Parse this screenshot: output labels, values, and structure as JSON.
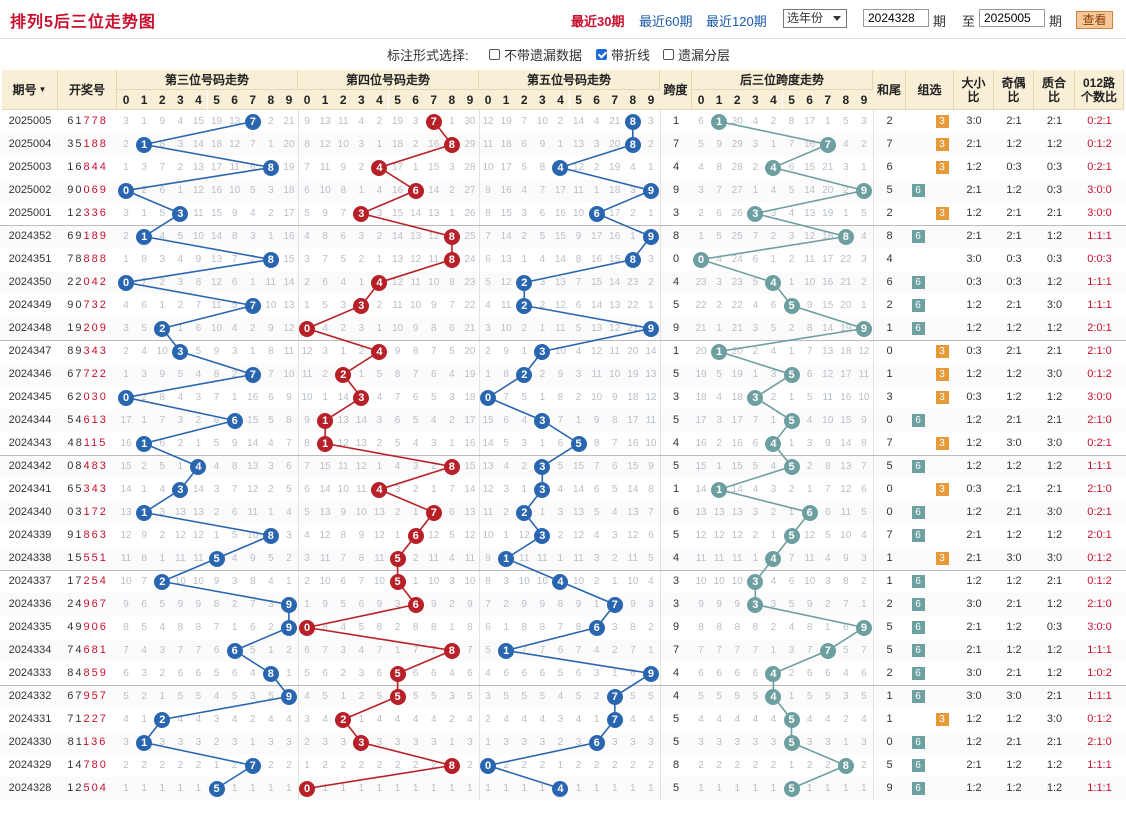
{
  "title": "排列5后三位走势图",
  "periods": [
    {
      "label": "最近30期",
      "active": true
    },
    {
      "label": "最近60期",
      "active": false
    },
    {
      "label": "最近120期",
      "active": false
    }
  ],
  "year_select": "选年份",
  "range": {
    "from": "2024328",
    "from_suffix": "期",
    "to_label": "至",
    "to": "2025005",
    "to_suffix": "期"
  },
  "view_button": "查看",
  "options": {
    "label": "标注形式选择:",
    "items": [
      {
        "label": "不带遗漏数据",
        "checked": false
      },
      {
        "label": "带折线",
        "checked": true
      },
      {
        "label": "遗漏分层",
        "checked": false
      }
    ]
  },
  "headers": {
    "issue": "期号",
    "draw": "开奖号",
    "pos3": "第三位号码走势",
    "pos4": "第四位号码走势",
    "pos5": "第五位号码走势",
    "span": "跨度",
    "spantrend": "后三位跨度走势",
    "sumtail": "和尾",
    "group": "组选",
    "bigsmall": "大小比",
    "oddeven": "奇偶比",
    "primecomp": "质合比",
    "mod012": "012路个数比",
    "digits": [
      "0",
      "1",
      "2",
      "3",
      "4",
      "5",
      "6",
      "7",
      "8",
      "9"
    ]
  },
  "rows": [
    {
      "issue": "2025005",
      "draw": "61778",
      "d": [
        7,
        7,
        8
      ],
      "span": "1",
      "sumtail": "2",
      "g3": "3",
      "g6": "",
      "bs": "3:0",
      "oe": "2:1",
      "pc": "2:1",
      "m": "0:2:1"
    },
    {
      "issue": "2025004",
      "draw": "35188",
      "d": [
        1,
        8,
        8
      ],
      "span": "7",
      "sumtail": "7",
      "g3": "3",
      "g6": "",
      "bs": "2:1",
      "oe": "1:2",
      "pc": "1:2",
      "m": "0:1:2"
    },
    {
      "issue": "2025003",
      "draw": "16844",
      "d": [
        8,
        4,
        4
      ],
      "span": "4",
      "sumtail": "6",
      "g3": "3",
      "g6": "",
      "bs": "1:2",
      "oe": "0:3",
      "pc": "0:3",
      "m": "0:2:1"
    },
    {
      "issue": "2025002",
      "draw": "90069",
      "d": [
        0,
        6,
        9
      ],
      "span": "9",
      "sumtail": "5",
      "g3": "",
      "g6": "6",
      "bs": "2:1",
      "oe": "1:2",
      "pc": "0:3",
      "m": "3:0:0"
    },
    {
      "issue": "2025001",
      "draw": "12336",
      "d": [
        3,
        3,
        6
      ],
      "span": "3",
      "sumtail": "2",
      "g3": "3",
      "g6": "",
      "bs": "1:2",
      "oe": "2:1",
      "pc": "2:1",
      "m": "3:0:0"
    },
    {
      "issue": "2024352",
      "draw": "69189",
      "d": [
        1,
        8,
        9
      ],
      "span": "8",
      "sumtail": "8",
      "g3": "",
      "g6": "6",
      "bs": "2:1",
      "oe": "2:1",
      "pc": "1:2",
      "m": "1:1:1"
    },
    {
      "issue": "2024351",
      "draw": "78888",
      "d": [
        8,
        8,
        8
      ],
      "span": "0",
      "sumtail": "4",
      "g3": "",
      "g6": "",
      "bs": "3:0",
      "oe": "0:3",
      "pc": "0:3",
      "m": "0:0:3"
    },
    {
      "issue": "2024350",
      "draw": "22042",
      "d": [
        0,
        4,
        2
      ],
      "span": "4",
      "sumtail": "6",
      "g3": "",
      "g6": "6",
      "bs": "0:3",
      "oe": "0:3",
      "pc": "1:2",
      "m": "1:1:1"
    },
    {
      "issue": "2024349",
      "draw": "90732",
      "d": [
        7,
        3,
        2
      ],
      "span": "5",
      "sumtail": "2",
      "g3": "",
      "g6": "6",
      "bs": "1:2",
      "oe": "2:1",
      "pc": "3:0",
      "m": "1:1:1"
    },
    {
      "issue": "2024348",
      "draw": "19209",
      "d": [
        2,
        0,
        9
      ],
      "span": "9",
      "sumtail": "1",
      "g3": "",
      "g6": "6",
      "bs": "1:2",
      "oe": "1:2",
      "pc": "1:2",
      "m": "2:0:1"
    },
    {
      "issue": "2024347",
      "draw": "89343",
      "d": [
        3,
        4,
        3
      ],
      "span": "1",
      "sumtail": "0",
      "g3": "3",
      "g6": "",
      "bs": "0:3",
      "oe": "2:1",
      "pc": "2:1",
      "m": "2:1:0"
    },
    {
      "issue": "2024346",
      "draw": "67722",
      "d": [
        7,
        2,
        2
      ],
      "span": "5",
      "sumtail": "1",
      "g3": "3",
      "g6": "",
      "bs": "1:2",
      "oe": "1:2",
      "pc": "3:0",
      "m": "0:1:2"
    },
    {
      "issue": "2024345",
      "draw": "62030",
      "d": [
        0,
        3,
        0
      ],
      "span": "3",
      "sumtail": "3",
      "g3": "3",
      "g6": "",
      "bs": "0:3",
      "oe": "1:2",
      "pc": "1:2",
      "m": "3:0:0"
    },
    {
      "issue": "2024344",
      "draw": "54613",
      "d": [
        6,
        1,
        3
      ],
      "span": "5",
      "sumtail": "0",
      "g3": "",
      "g6": "6",
      "bs": "1:2",
      "oe": "2:1",
      "pc": "2:1",
      "m": "2:1:0"
    },
    {
      "issue": "2024343",
      "draw": "48115",
      "d": [
        1,
        1,
        5
      ],
      "span": "4",
      "sumtail": "7",
      "g3": "3",
      "g6": "",
      "bs": "1:2",
      "oe": "3:0",
      "pc": "3:0",
      "m": "0:2:1"
    },
    {
      "issue": "2024342",
      "draw": "08483",
      "d": [
        4,
        8,
        3
      ],
      "span": "5",
      "sumtail": "5",
      "g3": "",
      "g6": "6",
      "bs": "1:2",
      "oe": "1:2",
      "pc": "1:2",
      "m": "1:1:1"
    },
    {
      "issue": "2024341",
      "draw": "65343",
      "d": [
        3,
        4,
        3
      ],
      "span": "1",
      "sumtail": "0",
      "g3": "3",
      "g6": "",
      "bs": "0:3",
      "oe": "2:1",
      "pc": "2:1",
      "m": "2:1:0"
    },
    {
      "issue": "2024340",
      "draw": "03172",
      "d": [
        1,
        7,
        2
      ],
      "span": "6",
      "sumtail": "0",
      "g3": "",
      "g6": "6",
      "bs": "1:2",
      "oe": "2:1",
      "pc": "3:0",
      "m": "0:2:1"
    },
    {
      "issue": "2024339",
      "draw": "91863",
      "d": [
        8,
        6,
        3
      ],
      "span": "5",
      "sumtail": "7",
      "g3": "",
      "g6": "6",
      "bs": "2:1",
      "oe": "1:2",
      "pc": "1:2",
      "m": "2:0:1"
    },
    {
      "issue": "2024338",
      "draw": "15551",
      "d": [
        5,
        5,
        1
      ],
      "span": "4",
      "sumtail": "1",
      "g3": "3",
      "g6": "",
      "bs": "2:1",
      "oe": "3:0",
      "pc": "3:0",
      "m": "0:1:2"
    },
    {
      "issue": "2024337",
      "draw": "17254",
      "d": [
        2,
        5,
        4
      ],
      "span": "3",
      "sumtail": "1",
      "g3": "",
      "g6": "6",
      "bs": "1:2",
      "oe": "1:2",
      "pc": "2:1",
      "m": "0:1:2"
    },
    {
      "issue": "2024336",
      "draw": "24967",
      "d": [
        9,
        6,
        7
      ],
      "span": "3",
      "sumtail": "2",
      "g3": "",
      "g6": "6",
      "bs": "3:0",
      "oe": "2:1",
      "pc": "1:2",
      "m": "2:1:0"
    },
    {
      "issue": "2024335",
      "draw": "49906",
      "d": [
        9,
        0,
        6
      ],
      "span": "9",
      "sumtail": "5",
      "g3": "",
      "g6": "6",
      "bs": "2:1",
      "oe": "1:2",
      "pc": "0:3",
      "m": "3:0:0"
    },
    {
      "issue": "2024334",
      "draw": "74681",
      "d": [
        6,
        8,
        1
      ],
      "span": "7",
      "sumtail": "5",
      "g3": "",
      "g6": "6",
      "bs": "2:1",
      "oe": "1:2",
      "pc": "1:2",
      "m": "1:1:1"
    },
    {
      "issue": "2024333",
      "draw": "84859",
      "d": [
        8,
        5,
        9
      ],
      "span": "4",
      "sumtail": "2",
      "g3": "",
      "g6": "6",
      "bs": "3:0",
      "oe": "2:1",
      "pc": "1:2",
      "m": "1:0:2"
    },
    {
      "issue": "2024332",
      "draw": "67957",
      "d": [
        9,
        5,
        7
      ],
      "span": "4",
      "sumtail": "1",
      "g3": "",
      "g6": "6",
      "bs": "3:0",
      "oe": "3:0",
      "pc": "2:1",
      "m": "1:1:1"
    },
    {
      "issue": "2024331",
      "draw": "71227",
      "d": [
        2,
        2,
        7
      ],
      "span": "5",
      "sumtail": "1",
      "g3": "3",
      "g6": "",
      "bs": "1:2",
      "oe": "1:2",
      "pc": "3:0",
      "m": "0:1:2"
    },
    {
      "issue": "2024330",
      "draw": "81136",
      "d": [
        1,
        3,
        6
      ],
      "span": "5",
      "sumtail": "0",
      "g3": "",
      "g6": "6",
      "bs": "1:2",
      "oe": "2:1",
      "pc": "2:1",
      "m": "2:1:0"
    },
    {
      "issue": "2024329",
      "draw": "14780",
      "d": [
        7,
        8,
        0
      ],
      "span": "8",
      "sumtail": "5",
      "g3": "",
      "g6": "6",
      "bs": "2:1",
      "oe": "1:2",
      "pc": "1:2",
      "m": "1:1:1"
    },
    {
      "issue": "2024328",
      "draw": "12504",
      "d": [
        5,
        0,
        4
      ],
      "span": "5",
      "sumtail": "9",
      "g3": "",
      "g6": "6",
      "bs": "1:2",
      "oe": "1:2",
      "pc": "1:2",
      "m": "1:1:1"
    }
  ],
  "colors": {
    "pos3": "#2a66b0",
    "pos4": "#b82028",
    "pos5": "#2a66b0",
    "span": "#6e9fa0"
  }
}
